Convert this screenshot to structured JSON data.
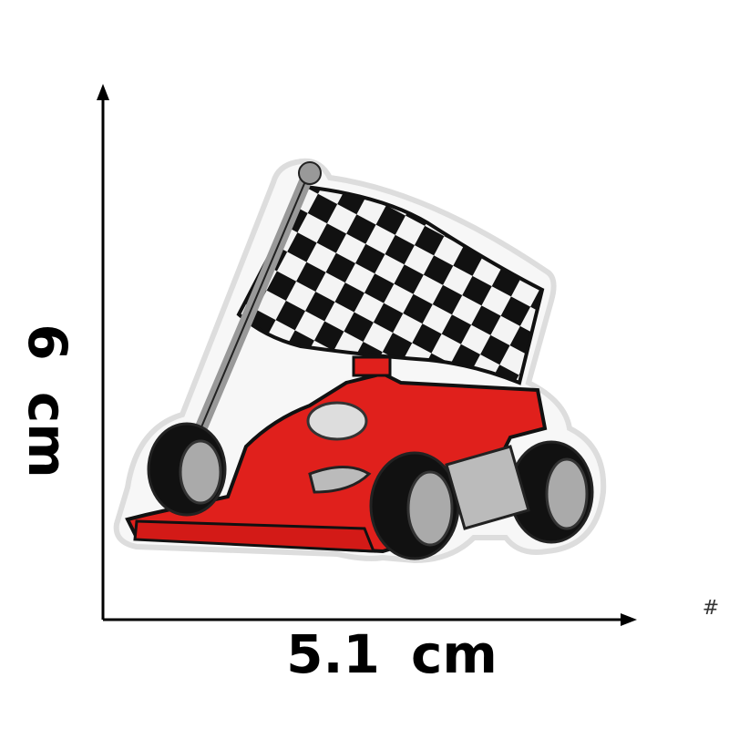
{
  "labels": {
    "height": "6 cm",
    "width": "5.1 cm",
    "mark": "#"
  }
}
